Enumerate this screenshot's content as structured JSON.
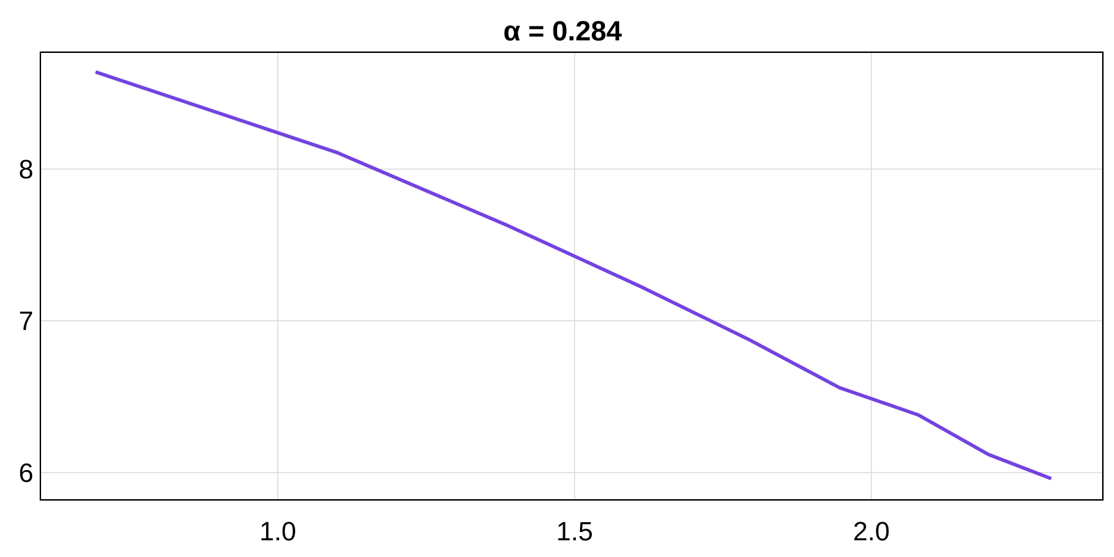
{
  "chart_data": {
    "type": "line",
    "title": "α = 0.284",
    "xlabel": "",
    "ylabel": "",
    "xlim": [
      0.6,
      2.39
    ],
    "ylim": [
      5.82,
      8.77
    ],
    "xticks": [
      {
        "value": 1.0,
        "label": "1.0"
      },
      {
        "value": 1.5,
        "label": "1.5"
      },
      {
        "value": 2.0,
        "label": "2.0"
      }
    ],
    "yticks": [
      {
        "value": 6,
        "label": "6"
      },
      {
        "value": 7,
        "label": "7"
      },
      {
        "value": 8,
        "label": "8"
      }
    ],
    "grid": true,
    "series": [
      {
        "color": "#7342e0",
        "x": [
          0.693,
          1.099,
          1.386,
          1.609,
          1.792,
          1.946,
          2.079,
          2.197,
          2.303
        ],
        "y": [
          8.64,
          8.11,
          7.63,
          7.23,
          6.88,
          6.56,
          6.38,
          6.12,
          5.96
        ]
      }
    ]
  }
}
